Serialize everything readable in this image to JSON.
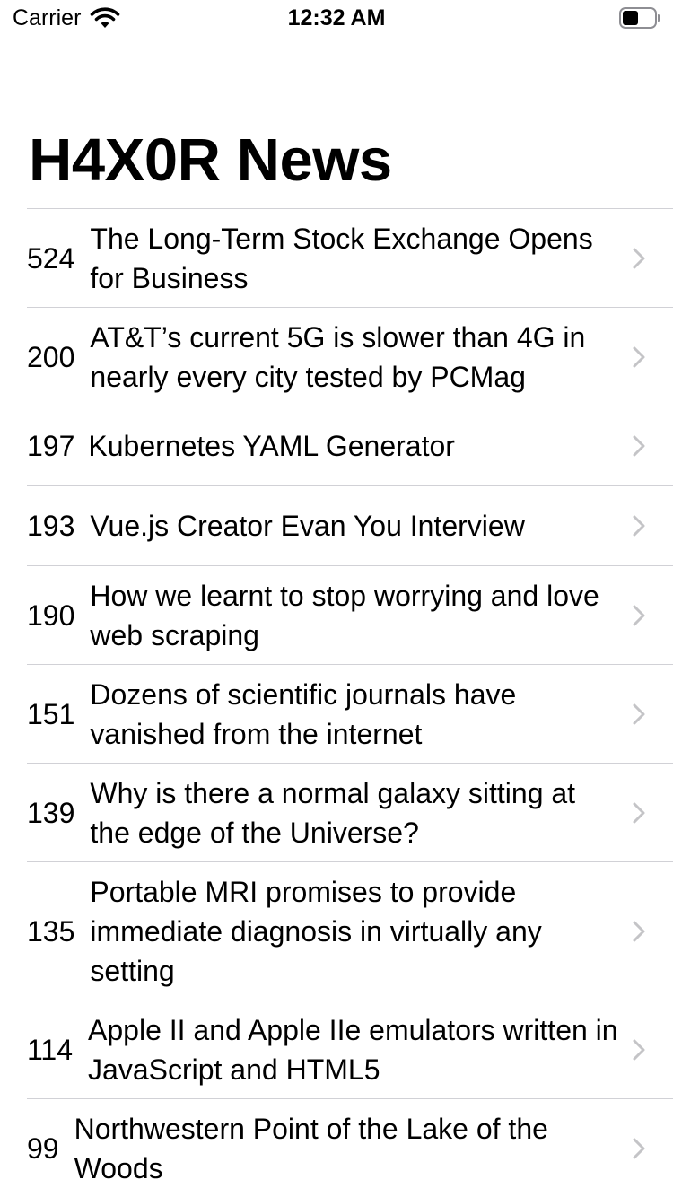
{
  "status_bar": {
    "carrier": "Carrier",
    "time": "12:32 AM"
  },
  "nav": {
    "title": "H4X0R News"
  },
  "posts": [
    {
      "points": "524",
      "title": "The Long-Term Stock Exchange Opens for Business"
    },
    {
      "points": "200",
      "title": "AT&T’s current 5G is slower than 4G in nearly every city tested by PCMag"
    },
    {
      "points": "197",
      "title": "Kubernetes YAML Generator"
    },
    {
      "points": "193",
      "title": "Vue.js Creator Evan You Interview"
    },
    {
      "points": "190",
      "title": "How we learnt to stop worrying and love web scraping"
    },
    {
      "points": "151",
      "title": "Dozens of scientific journals have vanished from the internet"
    },
    {
      "points": "139",
      "title": "Why is there a normal galaxy sitting at the edge of the Universe?"
    },
    {
      "points": "135",
      "title": "Portable MRI promises to provide immediate diagnosis in virtually any setting"
    },
    {
      "points": "114",
      "title": "Apple II and Apple IIe emulators written in JavaScript and HTML5"
    },
    {
      "points": "99",
      "title": "Northwestern Point of the Lake of the Woods"
    }
  ],
  "colors": {
    "separator": "#d1d1d6",
    "chevron": "#c4c4c7",
    "text": "#000000"
  },
  "icons": {
    "wifi": "wifi-icon",
    "battery": "battery-icon",
    "chevron": "chevron-right-icon"
  }
}
